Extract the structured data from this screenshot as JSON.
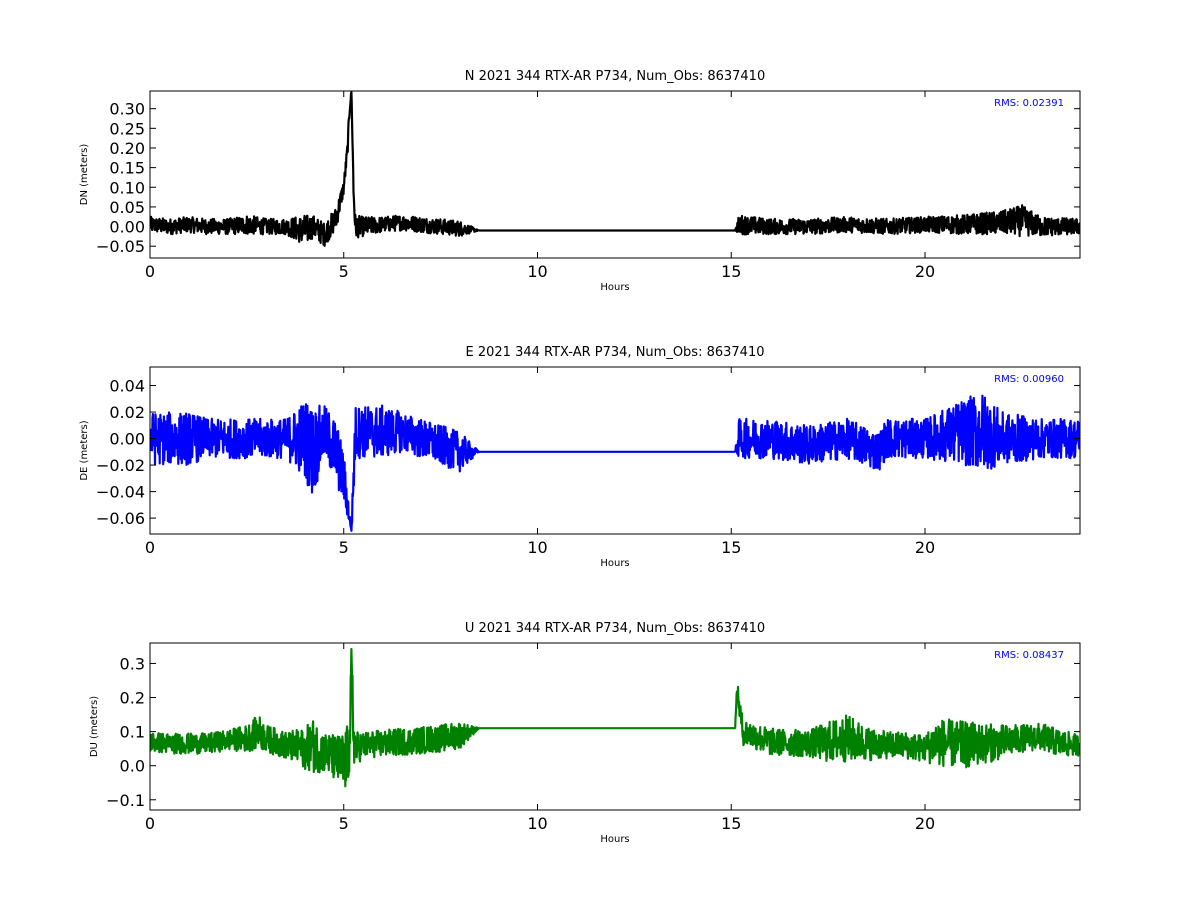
{
  "chart_data": [
    {
      "type": "line",
      "title": "N 2021 344 RTX-AR  P734, Num_Obs: 8637410",
      "xlabel": "Hours",
      "ylabel": "DN (meters)",
      "xlim": [
        0,
        24
      ],
      "ylim": [
        -0.08,
        0.345
      ],
      "xticks": [
        0,
        5,
        10,
        15,
        20
      ],
      "xtick_labels": [
        "0",
        "5",
        "10",
        "15",
        "20"
      ],
      "yticks": [
        -0.05,
        0.0,
        0.05,
        0.1,
        0.15,
        0.2,
        0.25,
        0.3
      ],
      "ytick_labels": [
        "−0.05",
        "0.00",
        "0.05",
        "0.10",
        "0.15",
        "0.20",
        "0.25",
        "0.30"
      ],
      "grid": false,
      "series_color": "#000000",
      "annotation": "RMS:  0.02391",
      "annotation_color": "#0000ff",
      "series": [
        {
          "x": [
            0,
            0.5,
            1,
            1.5,
            2,
            2.5,
            3,
            3.5,
            4,
            4.2,
            4.5,
            4.8,
            5.0,
            5.1,
            5.15,
            5.2,
            5.25,
            5.3,
            5.5,
            6,
            6.5,
            7,
            7.5,
            8,
            8.5,
            15.1,
            15.2,
            16,
            17,
            18,
            19,
            20,
            21,
            22,
            22.5,
            23,
            24
          ],
          "y": [
            0.005,
            0.0,
            0.005,
            0.0,
            0.0,
            0.005,
            0.0,
            0.0,
            -0.01,
            0.0,
            -0.02,
            0.02,
            0.1,
            0.2,
            0.3,
            0.345,
            0.1,
            0.0,
            0.0,
            0.005,
            0.01,
            0.005,
            0.0,
            -0.005,
            -0.01,
            -0.01,
            0.005,
            0.0,
            0.0,
            0.005,
            0.0,
            0.005,
            0.005,
            0.01,
            0.015,
            0.0,
            0.0
          ],
          "band": [
            0.02,
            0.02,
            0.02,
            0.02,
            0.02,
            0.025,
            0.02,
            0.02,
            0.04,
            0.03,
            0.03,
            0.03,
            0.02,
            0.02,
            0.02,
            0.0,
            0.05,
            0.03,
            0.025,
            0.02,
            0.02,
            0.02,
            0.02,
            0.02,
            0.0,
            0.0,
            0.025,
            0.02,
            0.02,
            0.02,
            0.02,
            0.02,
            0.025,
            0.03,
            0.04,
            0.025,
            0.02
          ]
        }
      ]
    },
    {
      "type": "line",
      "title": "E 2021 344 RTX-AR  P734, Num_Obs: 8637410",
      "xlabel": "Hours",
      "ylabel": "DE (meters)",
      "xlim": [
        0,
        24
      ],
      "ylim": [
        -0.072,
        0.054
      ],
      "xticks": [
        0,
        5,
        10,
        15,
        20
      ],
      "xtick_labels": [
        "0",
        "5",
        "10",
        "15",
        "20"
      ],
      "yticks": [
        -0.06,
        -0.04,
        -0.02,
        0.0,
        0.02,
        0.04
      ],
      "ytick_labels": [
        "−0.06",
        "−0.04",
        "−0.02",
        "0.00",
        "0.02",
        "0.04"
      ],
      "grid": false,
      "series_color": "#0000ff",
      "annotation": "RMS:  0.00960",
      "annotation_color": "#0000ff",
      "series": [
        {
          "x": [
            0,
            0.5,
            1,
            1.5,
            2,
            2.5,
            3,
            3.5,
            4,
            4.2,
            4.5,
            4.8,
            5.0,
            5.1,
            5.2,
            5.25,
            5.3,
            5.5,
            6,
            6.5,
            7,
            7.5,
            8,
            8.5,
            15.1,
            15.2,
            16,
            17,
            18,
            18.8,
            19,
            20,
            21,
            21.5,
            22,
            23,
            24
          ],
          "y": [
            0.0,
            0.0,
            0.0,
            0.0,
            0.0,
            0.0,
            0.0,
            0.0,
            0.0,
            -0.01,
            0.005,
            -0.01,
            -0.03,
            -0.05,
            -0.07,
            -0.03,
            0.005,
            0.005,
            0.005,
            0.005,
            0.0,
            -0.005,
            -0.01,
            -0.01,
            -0.01,
            0.0,
            0.0,
            -0.005,
            0.0,
            -0.01,
            0.0,
            0.0,
            0.005,
            0.005,
            0.0,
            0.0,
            0.0
          ],
          "band": [
            0.02,
            0.02,
            0.02,
            0.015,
            0.015,
            0.015,
            0.015,
            0.015,
            0.03,
            0.035,
            0.02,
            0.025,
            0.02,
            0.01,
            0.0,
            0.02,
            0.02,
            0.02,
            0.02,
            0.015,
            0.015,
            0.015,
            0.015,
            0.0,
            0.0,
            0.015,
            0.015,
            0.015,
            0.015,
            0.015,
            0.015,
            0.015,
            0.025,
            0.03,
            0.02,
            0.015,
            0.015
          ]
        }
      ]
    },
    {
      "type": "line",
      "title": "U 2021 344 RTX-AR  P734, Num_Obs: 8637410",
      "xlabel": "Hours",
      "ylabel": "DU (meters)",
      "xlim": [
        0,
        24
      ],
      "ylim": [
        -0.13,
        0.36
      ],
      "xticks": [
        0,
        5,
        10,
        15,
        20
      ],
      "xtick_labels": [
        "0",
        "5",
        "10",
        "15",
        "20"
      ],
      "yticks": [
        -0.1,
        0.0,
        0.1,
        0.2,
        0.3
      ],
      "ytick_labels": [
        "−0.1",
        "0.0",
        "0.1",
        "0.2",
        "0.3"
      ],
      "grid": false,
      "series_color": "#008000",
      "annotation": "RMS:  0.08437",
      "annotation_color": "#0000ff",
      "series": [
        {
          "x": [
            0,
            0.5,
            1,
            1.5,
            2,
            2.5,
            2.8,
            3,
            3.5,
            4,
            4.2,
            4.5,
            4.8,
            5.0,
            5.15,
            5.2,
            5.25,
            5.3,
            5.5,
            6,
            6.5,
            7,
            7.5,
            8,
            8.5,
            15.1,
            15.15,
            15.3,
            16,
            17,
            17.5,
            18,
            18.5,
            19,
            19.5,
            20,
            20.3,
            21,
            22,
            22.5,
            23,
            23.5,
            24
          ],
          "y": [
            0.07,
            0.065,
            0.065,
            0.065,
            0.075,
            0.08,
            0.1,
            0.08,
            0.06,
            0.05,
            0.06,
            0.04,
            0.02,
            0.0,
            0.05,
            0.3,
            0.1,
            0.05,
            0.06,
            0.065,
            0.07,
            0.075,
            0.08,
            0.09,
            0.11,
            0.11,
            0.22,
            0.1,
            0.07,
            0.065,
            0.07,
            0.08,
            0.065,
            0.06,
            0.06,
            0.05,
            0.07,
            0.06,
            0.07,
            0.08,
            0.085,
            0.065,
            0.06
          ],
          "band": [
            0.03,
            0.03,
            0.03,
            0.03,
            0.03,
            0.04,
            0.05,
            0.04,
            0.04,
            0.06,
            0.08,
            0.06,
            0.07,
            0.1,
            0.08,
            0.06,
            0.1,
            0.05,
            0.04,
            0.04,
            0.04,
            0.04,
            0.04,
            0.04,
            0.0,
            0.0,
            0.03,
            0.04,
            0.04,
            0.04,
            0.06,
            0.07,
            0.05,
            0.04,
            0.04,
            0.04,
            0.07,
            0.07,
            0.05,
            0.04,
            0.04,
            0.04,
            0.03
          ]
        }
      ]
    }
  ]
}
